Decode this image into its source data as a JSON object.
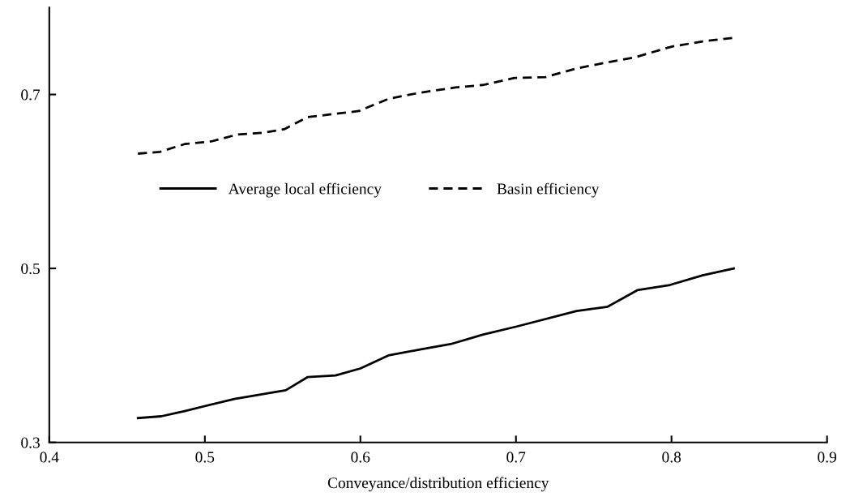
{
  "chart_data": {
    "type": "line",
    "xlabel": "Conveyance/distribution efficiency",
    "x": [
      0.457,
      0.472,
      0.487,
      0.519,
      0.552,
      0.566,
      0.584,
      0.6,
      0.618,
      0.639,
      0.658,
      0.679,
      0.7,
      0.739,
      0.759,
      0.778,
      0.799,
      0.82,
      0.84
    ],
    "series": [
      {
        "name": "Average local efficiency",
        "color": "#000000",
        "line_style": "solid",
        "values": [
          0.328,
          0.33,
          0.336,
          0.35,
          0.36,
          0.375,
          0.377,
          0.385,
          0.4,
          0.407,
          0.413,
          0.424,
          0.433,
          0.451,
          0.456,
          0.475,
          0.481,
          0.492,
          0.5
        ]
      },
      {
        "name": "Basin efficiency",
        "color": "#000000",
        "line_style": "dashed",
        "x": [
          0.457,
          0.471,
          0.487,
          0.504,
          0.521,
          0.537,
          0.551,
          0.566,
          0.599,
          0.618,
          0.638,
          0.661,
          0.679,
          0.699,
          0.719,
          0.739,
          0.759,
          0.777,
          0.8,
          0.82,
          0.839
        ],
        "values": [
          0.632,
          0.634,
          0.643,
          0.646,
          0.654,
          0.656,
          0.66,
          0.674,
          0.681,
          0.695,
          0.702,
          0.708,
          0.711,
          0.719,
          0.72,
          0.73,
          0.737,
          0.743,
          0.755,
          0.761,
          0.765
        ]
      }
    ],
    "xlim": [
      0.4,
      0.9
    ],
    "xticks": [
      0.4,
      0.5,
      0.6,
      0.7,
      0.8,
      0.9
    ],
    "ylim": [
      0.3,
      0.8
    ],
    "yticks": [
      0.3,
      0.5,
      0.7
    ],
    "grid": false,
    "legend": "center"
  }
}
